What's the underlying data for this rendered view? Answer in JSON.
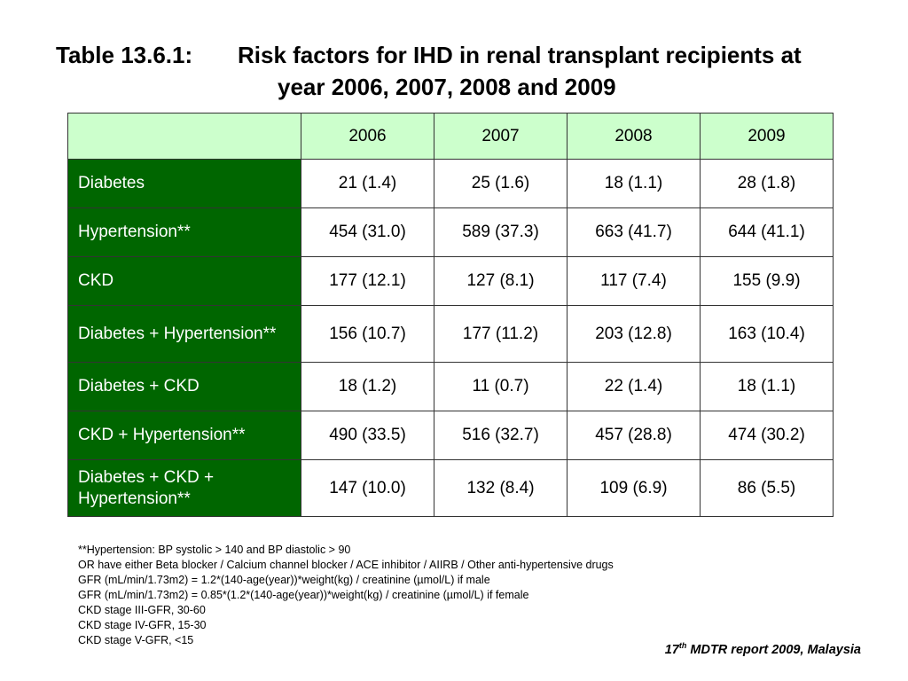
{
  "title": {
    "label": "Table 13.6.1:",
    "text_line1": "Risk factors for IHD in renal transplant recipients at",
    "text_line2": "year 2006, 2007, 2008 and 2009"
  },
  "table": {
    "corner": "",
    "columns": [
      "2006",
      "2007",
      "2008",
      "2009"
    ],
    "rows": [
      {
        "label": "Diabetes",
        "values": [
          "21 (1.4)",
          "25 (1.6)",
          "18 (1.1)",
          "28 (1.8)"
        ]
      },
      {
        "label": "Hypertension**",
        "values": [
          "454 (31.0)",
          "589 (37.3)",
          "663 (41.7)",
          "644 (41.1)"
        ]
      },
      {
        "label": "CKD",
        "values": [
          "177 (12.1)",
          "127 (8.1)",
          "117 (7.4)",
          "155 (9.9)"
        ]
      },
      {
        "label": "Diabetes + Hypertension**",
        "values": [
          "156 (10.7)",
          "177 (11.2)",
          "203 (12.8)",
          "163 (10.4)"
        ]
      },
      {
        "label": "Diabetes + CKD",
        "values": [
          "18 (1.2)",
          "11 (0.7)",
          "22 (1.4)",
          "18 (1.1)"
        ]
      },
      {
        "label": "CKD + Hypertension**",
        "values": [
          "490 (33.5)",
          "516 (32.7)",
          "457 (28.8)",
          "474 (30.2)"
        ]
      },
      {
        "label": "Diabetes + CKD + Hypertension**",
        "values": [
          "147 (10.0)",
          "132 (8.4)",
          "109 (6.9)",
          "86 (5.5)"
        ]
      }
    ]
  },
  "notes": [
    "**Hypertension: BP systolic > 140 and BP diastolic > 90",
    "OR have either Beta blocker / Calcium channel blocker / ACE inhibitor / AIIRB / Other anti-hypertensive drugs",
    "GFR (mL/min/1.73m2) = 1.2*(140-age(year))*weight(kg) / creatinine (µmol/L) if male",
    "GFR (mL/min/1.73m2) = 0.85*(1.2*(140-age(year))*weight(kg) / creatinine (µmol/L) if female",
    "CKD stage III-GFR, 30-60",
    "CKD stage IV-GFR, 15-30",
    "CKD stage V-GFR, <15"
  ],
  "source": {
    "number": "17",
    "ordinal": "th",
    "text": " MDTR report 2009, Malaysia"
  },
  "colors": {
    "header_bg": "#ccffcc",
    "row_label_bg": "#006600",
    "row_label_text": "#ffffff"
  }
}
